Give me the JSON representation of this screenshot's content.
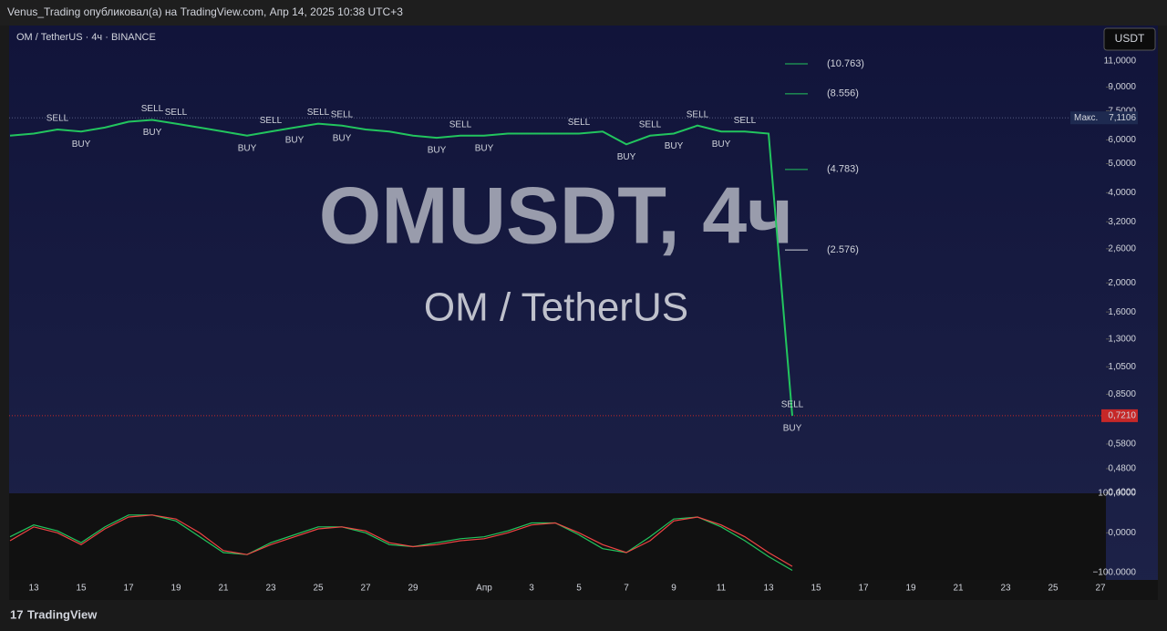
{
  "header": "Venus_Trading опубликовал(а) на TradingView.com, Апр 14, 2025 10:38 UTC+3",
  "symbol": "OM / TetherUS · 4ч · BINANCE",
  "currency": "USDT",
  "watermark": [
    "OMUSDT, 4ч",
    "OM / TetherUS"
  ],
  "footer": "TradingView",
  "chart_data": [
    {
      "type": "line",
      "log_scale": true,
      "color": "#22c55e",
      "categories": [
        null,
        "13",
        null,
        "15",
        null,
        "17",
        null,
        "19",
        null,
        "21",
        null,
        "23",
        null,
        "25",
        null,
        "27",
        null,
        "29",
        null,
        null,
        "Апр",
        null,
        "3",
        null,
        "5",
        null,
        "7",
        null,
        "9",
        null,
        "11",
        null,
        "13",
        null,
        "15",
        null,
        "17",
        null,
        "19",
        null,
        "21",
        null,
        "23",
        null,
        "25",
        null,
        "27",
        null
      ],
      "values": [
        6.2,
        6.3,
        6.5,
        6.4,
        6.6,
        6.9,
        7.0,
        6.8,
        6.6,
        6.4,
        6.2,
        6.4,
        6.6,
        6.8,
        6.7,
        6.5,
        6.4,
        6.2,
        6.1,
        6.2,
        6.2,
        6.3,
        6.3,
        6.3,
        6.3,
        6.4,
        5.8,
        6.2,
        6.3,
        6.7,
        6.4,
        6.4,
        6.3,
        0.721,
        null,
        null,
        null,
        null,
        null,
        null,
        null,
        null,
        null,
        null,
        null,
        null,
        null,
        null
      ],
      "ylim": [
        0.4,
        14.25
      ],
      "yticks": [
        {
          "value": 11,
          "label": "11,0000"
        },
        {
          "value": 9,
          "label": "9,0000"
        },
        {
          "value": 7.5,
          "label": "7,5000"
        },
        {
          "value": 6,
          "label": "6,0000"
        },
        {
          "value": 5,
          "label": "5,0000"
        },
        {
          "value": 4,
          "label": "4,0000"
        },
        {
          "value": 3.2,
          "label": "3,2000"
        },
        {
          "value": 2.6,
          "label": "2,6000"
        },
        {
          "value": 2,
          "label": "2,0000"
        },
        {
          "value": 1.6,
          "label": "1,6000"
        },
        {
          "value": 1.3,
          "label": "1,3000"
        },
        {
          "value": 1.05,
          "label": "1,0500"
        },
        {
          "value": 0.85,
          "label": "0,8500"
        },
        {
          "value": 0.58,
          "label": "0,5800"
        },
        {
          "value": 0.48,
          "label": "0,4800"
        },
        {
          "value": 0.4,
          "label": "0,4000"
        }
      ],
      "max_marker": {
        "label": "Макс.",
        "value": 7.1106,
        "value_label": "7,1106"
      },
      "last_price": {
        "value": 0.721,
        "label": "0,7210",
        "color": "#c62828"
      },
      "levels": [
        {
          "value": 10.763,
          "label": "(10.763)",
          "color": "#22c55e"
        },
        {
          "value": 8.556,
          "label": "(8.556)",
          "color": "#22c55e"
        },
        {
          "value": 4.783,
          "label": "(4.783)",
          "color": "#22c55e"
        },
        {
          "value": 2.576,
          "label": "(2.576)",
          "color": "#d1d4dc"
        }
      ],
      "signals": [
        {
          "text": "SELL",
          "at": 2
        },
        {
          "text": "BUY",
          "at": 3
        },
        {
          "text": "SELL",
          "at": 6
        },
        {
          "text": "SELL",
          "at": 7
        },
        {
          "text": "BUY",
          "at": 6
        },
        {
          "text": "BUY",
          "at": 10
        },
        {
          "text": "SELL",
          "at": 11
        },
        {
          "text": "BUY",
          "at": 12
        },
        {
          "text": "SELL",
          "at": 13
        },
        {
          "text": "BUY",
          "at": 14
        },
        {
          "text": "SELL",
          "at": 14
        },
        {
          "text": "BUY",
          "at": 18
        },
        {
          "text": "SELL",
          "at": 19
        },
        {
          "text": "BUY",
          "at": 20
        },
        {
          "text": "SELL",
          "at": 24
        },
        {
          "text": "BUY",
          "at": 26
        },
        {
          "text": "SELL",
          "at": 27
        },
        {
          "text": "BUY",
          "at": 28
        },
        {
          "text": "SELL",
          "at": 29
        },
        {
          "text": "BUY",
          "at": 30
        },
        {
          "text": "SELL",
          "at": 31
        },
        {
          "text": "SELL",
          "at": 33
        },
        {
          "text": "BUY",
          "at": 33
        }
      ]
    },
    {
      "type": "line",
      "ylim": [
        -110,
        100
      ],
      "yticks": [
        {
          "value": 100,
          "label": "100,0000"
        },
        {
          "value": 0,
          "label": "0,0000"
        },
        {
          "value": -100,
          "label": "−100.0000"
        }
      ],
      "series": [
        {
          "color": "#22c55e",
          "values": [
            -10,
            20,
            5,
            -25,
            15,
            45,
            45,
            30,
            -10,
            -50,
            -55,
            -25,
            -5,
            15,
            15,
            0,
            -30,
            -35,
            -25,
            -15,
            -10,
            5,
            25,
            25,
            -5,
            -40,
            -50,
            -10,
            35,
            40,
            15,
            -20,
            -60,
            -95,
            null,
            null,
            null,
            null,
            null,
            null,
            null,
            null,
            null,
            null,
            null,
            null,
            null,
            null
          ]
        },
        {
          "color": "#ef4444",
          "values": [
            -20,
            15,
            0,
            -30,
            10,
            40,
            45,
            35,
            0,
            -45,
            -55,
            -30,
            -10,
            10,
            15,
            5,
            -25,
            -35,
            -30,
            -20,
            -15,
            0,
            20,
            25,
            0,
            -30,
            -50,
            -20,
            30,
            40,
            20,
            -10,
            -50,
            -85,
            null,
            null,
            null,
            null,
            null,
            null,
            null,
            null,
            null,
            null,
            null,
            null,
            null,
            null
          ]
        }
      ]
    }
  ]
}
